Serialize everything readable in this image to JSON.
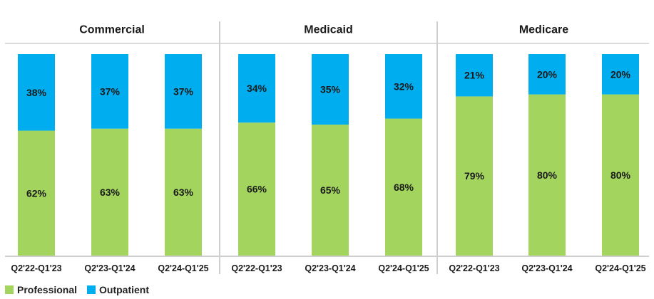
{
  "chart_data": {
    "type": "bar",
    "stacked": true,
    "percent": true,
    "panels": [
      {
        "title": "Commercial",
        "categories": [
          "Q2'22-Q1'23",
          "Q2'23-Q1'24",
          "Q2'24-Q1'25"
        ],
        "series": [
          {
            "name": "Professional",
            "values": [
              62,
              63,
              63
            ]
          },
          {
            "name": "Outpatient",
            "values": [
              38,
              37,
              37
            ]
          }
        ]
      },
      {
        "title": "Medicaid",
        "categories": [
          "Q2'22-Q1'23",
          "Q2'23-Q1'24",
          "Q2'24-Q1'25"
        ],
        "series": [
          {
            "name": "Professional",
            "values": [
              66,
              65,
              68
            ]
          },
          {
            "name": "Outpatient",
            "values": [
              34,
              35,
              32
            ]
          }
        ]
      },
      {
        "title": "Medicare",
        "categories": [
          "Q2'22-Q1'23",
          "Q2'23-Q1'24",
          "Q2'24-Q1'25"
        ],
        "series": [
          {
            "name": "Professional",
            "values": [
              79,
              80,
              80
            ]
          },
          {
            "name": "Outpatient",
            "values": [
              21,
              20,
              20
            ]
          }
        ]
      }
    ],
    "ylim": [
      0,
      100
    ],
    "legend_position": "bottom-left",
    "colors": {
      "Professional": "#a2d45e",
      "Outpatient": "#00adef"
    }
  },
  "legend": [
    {
      "label": "Professional",
      "color": "#a2d45e"
    },
    {
      "label": "Outpatient",
      "color": "#00adef"
    }
  ]
}
